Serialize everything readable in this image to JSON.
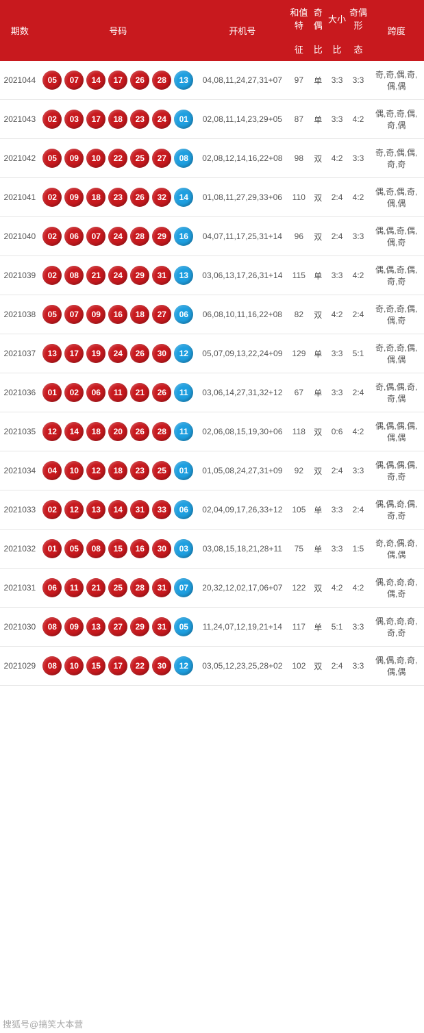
{
  "header": {
    "c1": "期数",
    "c2": "号码",
    "c3": "开机号",
    "c4a": "和值特",
    "c4b": "征",
    "c5a": "奇偶",
    "c5b": "比",
    "c6a": "大小",
    "c6b": "比",
    "c7a": "奇偶形",
    "c7b": "态",
    "c8": "跨度"
  },
  "col_widths": {
    "period": 56,
    "balls": 220,
    "kaiji": 132,
    "sum": 30,
    "oe": 24,
    "ratio1": 30,
    "ratio2": 30,
    "pattern": 70
  },
  "ball_colors": {
    "red": "#c8191e",
    "blue": "#1e9fe0"
  },
  "rows": [
    {
      "period": "2021044",
      "red": [
        "05",
        "07",
        "14",
        "17",
        "26",
        "28"
      ],
      "blue": "13",
      "kaiji": "04,08,11,24,27,31+07",
      "sum": "97",
      "oe": "单",
      "ratio1": "3:3",
      "ratio2": "3:3",
      "pattern": "奇,奇,偶,奇,偶,偶"
    },
    {
      "period": "2021043",
      "red": [
        "02",
        "03",
        "17",
        "18",
        "23",
        "24"
      ],
      "blue": "01",
      "kaiji": "02,08,11,14,23,29+05",
      "sum": "87",
      "oe": "单",
      "ratio1": "3:3",
      "ratio2": "4:2",
      "pattern": "偶,奇,奇,偶,奇,偶"
    },
    {
      "period": "2021042",
      "red": [
        "05",
        "09",
        "10",
        "22",
        "25",
        "27"
      ],
      "blue": "08",
      "kaiji": "02,08,12,14,16,22+08",
      "sum": "98",
      "oe": "双",
      "ratio1": "4:2",
      "ratio2": "3:3",
      "pattern": "奇,奇,偶,偶,奇,奇"
    },
    {
      "period": "2021041",
      "red": [
        "02",
        "09",
        "18",
        "23",
        "26",
        "32"
      ],
      "blue": "14",
      "kaiji": "01,08,11,27,29,33+06",
      "sum": "110",
      "oe": "双",
      "ratio1": "2:4",
      "ratio2": "4:2",
      "pattern": "偶,奇,偶,奇,偶,偶"
    },
    {
      "period": "2021040",
      "red": [
        "02",
        "06",
        "07",
        "24",
        "28",
        "29"
      ],
      "blue": "16",
      "kaiji": "04,07,11,17,25,31+14",
      "sum": "96",
      "oe": "双",
      "ratio1": "2:4",
      "ratio2": "3:3",
      "pattern": "偶,偶,奇,偶,偶,奇"
    },
    {
      "period": "2021039",
      "red": [
        "02",
        "08",
        "21",
        "24",
        "29",
        "31"
      ],
      "blue": "13",
      "kaiji": "03,06,13,17,26,31+14",
      "sum": "115",
      "oe": "单",
      "ratio1": "3:3",
      "ratio2": "4:2",
      "pattern": "偶,偶,奇,偶,奇,奇"
    },
    {
      "period": "2021038",
      "red": [
        "05",
        "07",
        "09",
        "16",
        "18",
        "27"
      ],
      "blue": "06",
      "kaiji": "06,08,10,11,16,22+08",
      "sum": "82",
      "oe": "双",
      "ratio1": "4:2",
      "ratio2": "2:4",
      "pattern": "奇,奇,奇,偶,偶,奇"
    },
    {
      "period": "2021037",
      "red": [
        "13",
        "17",
        "19",
        "24",
        "26",
        "30"
      ],
      "blue": "12",
      "kaiji": "05,07,09,13,22,24+09",
      "sum": "129",
      "oe": "单",
      "ratio1": "3:3",
      "ratio2": "5:1",
      "pattern": "奇,奇,奇,偶,偶,偶"
    },
    {
      "period": "2021036",
      "red": [
        "01",
        "02",
        "06",
        "11",
        "21",
        "26"
      ],
      "blue": "11",
      "kaiji": "03,06,14,27,31,32+12",
      "sum": "67",
      "oe": "单",
      "ratio1": "3:3",
      "ratio2": "2:4",
      "pattern": "奇,偶,偶,奇,奇,偶"
    },
    {
      "period": "2021035",
      "red": [
        "12",
        "14",
        "18",
        "20",
        "26",
        "28"
      ],
      "blue": "11",
      "kaiji": "02,06,08,15,19,30+06",
      "sum": "118",
      "oe": "双",
      "ratio1": "0:6",
      "ratio2": "4:2",
      "pattern": "偶,偶,偶,偶,偶,偶"
    },
    {
      "period": "2021034",
      "red": [
        "04",
        "10",
        "12",
        "18",
        "23",
        "25"
      ],
      "blue": "01",
      "kaiji": "01,05,08,24,27,31+09",
      "sum": "92",
      "oe": "双",
      "ratio1": "2:4",
      "ratio2": "3:3",
      "pattern": "偶,偶,偶,偶,奇,奇"
    },
    {
      "period": "2021033",
      "red": [
        "02",
        "12",
        "13",
        "14",
        "31",
        "33"
      ],
      "blue": "06",
      "kaiji": "02,04,09,17,26,33+12",
      "sum": "105",
      "oe": "单",
      "ratio1": "3:3",
      "ratio2": "2:4",
      "pattern": "偶,偶,奇,偶,奇,奇"
    },
    {
      "period": "2021032",
      "red": [
        "01",
        "05",
        "08",
        "15",
        "16",
        "30"
      ],
      "blue": "03",
      "kaiji": "03,08,15,18,21,28+11",
      "sum": "75",
      "oe": "单",
      "ratio1": "3:3",
      "ratio2": "1:5",
      "pattern": "奇,奇,偶,奇,偶,偶"
    },
    {
      "period": "2021031",
      "red": [
        "06",
        "11",
        "21",
        "25",
        "28",
        "31"
      ],
      "blue": "07",
      "kaiji": "20,32,12,02,17,06+07",
      "sum": "122",
      "oe": "双",
      "ratio1": "4:2",
      "ratio2": "4:2",
      "pattern": "偶,奇,奇,奇,偶,奇"
    },
    {
      "period": "2021030",
      "red": [
        "08",
        "09",
        "13",
        "27",
        "29",
        "31"
      ],
      "blue": "05",
      "kaiji": "11,24,07,12,19,21+14",
      "sum": "117",
      "oe": "单",
      "ratio1": "5:1",
      "ratio2": "3:3",
      "pattern": "偶,奇,奇,奇,奇,奇"
    },
    {
      "period": "2021029",
      "red": [
        "08",
        "10",
        "15",
        "17",
        "22",
        "30"
      ],
      "blue": "12",
      "kaiji": "03,05,12,23,25,28+02",
      "sum": "102",
      "oe": "双",
      "ratio1": "2:4",
      "ratio2": "3:3",
      "pattern": "偶,偶,奇,奇,偶,偶"
    }
  ],
  "watermark": "搜狐号@搞笑大本营"
}
